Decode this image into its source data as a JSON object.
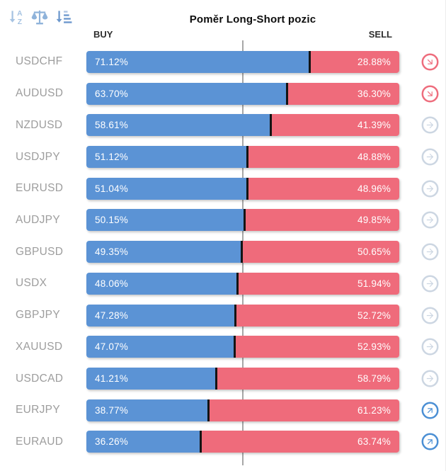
{
  "title": "Poměr Long-Short pozic",
  "columns": {
    "buy": "BUY",
    "sell": "SELL"
  },
  "toolbar": {
    "icons": [
      {
        "name": "sort-alphabetical-icon"
      },
      {
        "name": "balance-scale-icon"
      },
      {
        "name": "sort-amount-icon"
      }
    ]
  },
  "colors": {
    "buy_bar": "#5b93d5",
    "sell_bar": "#ef6b7b",
    "segment_divider": "#141414",
    "pair_label": "#9d9d9d",
    "trend_down": "#ee6d7d",
    "trend_neutral": "#ccd6e2",
    "trend_up": "#4b8fd4",
    "center_line": "#a7a7a7"
  },
  "rows": [
    {
      "pair": "USDCHF",
      "buy": "71.12%",
      "sell": "28.88%",
      "trend": "down"
    },
    {
      "pair": "AUDUSD",
      "buy": "63.70%",
      "sell": "36.30%",
      "trend": "down"
    },
    {
      "pair": "NZDUSD",
      "buy": "58.61%",
      "sell": "41.39%",
      "trend": "neutral"
    },
    {
      "pair": "USDJPY",
      "buy": "51.12%",
      "sell": "48.88%",
      "trend": "neutral"
    },
    {
      "pair": "EURUSD",
      "buy": "51.04%",
      "sell": "48.96%",
      "trend": "neutral"
    },
    {
      "pair": "AUDJPY",
      "buy": "50.15%",
      "sell": "49.85%",
      "trend": "neutral"
    },
    {
      "pair": "GBPUSD",
      "buy": "49.35%",
      "sell": "50.65%",
      "trend": "neutral"
    },
    {
      "pair": "USDX",
      "buy": "48.06%",
      "sell": "51.94%",
      "trend": "neutral"
    },
    {
      "pair": "GBPJPY",
      "buy": "47.28%",
      "sell": "52.72%",
      "trend": "neutral"
    },
    {
      "pair": "XAUUSD",
      "buy": "47.07%",
      "sell": "52.93%",
      "trend": "neutral"
    },
    {
      "pair": "USDCAD",
      "buy": "41.21%",
      "sell": "58.79%",
      "trend": "neutral"
    },
    {
      "pair": "EURJPY",
      "buy": "38.77%",
      "sell": "61.23%",
      "trend": "up"
    },
    {
      "pair": "EURAUD",
      "buy": "36.26%",
      "sell": "63.74%",
      "trend": "up"
    }
  ],
  "chart_data": {
    "type": "bar",
    "subtype": "horizontal-stacked",
    "title": "Poměr Long-Short pozic",
    "categories": [
      "USDCHF",
      "AUDUSD",
      "NZDUSD",
      "USDJPY",
      "EURUSD",
      "AUDJPY",
      "GBPUSD",
      "USDX",
      "GBPJPY",
      "XAUUSD",
      "USDCAD",
      "EURJPY",
      "EURAUD"
    ],
    "series": [
      {
        "name": "BUY",
        "values": [
          71.12,
          63.7,
          58.61,
          51.12,
          51.04,
          50.15,
          49.35,
          48.06,
          47.28,
          47.07,
          41.21,
          38.77,
          36.26
        ]
      },
      {
        "name": "SELL",
        "values": [
          28.88,
          36.3,
          41.39,
          48.88,
          48.96,
          49.85,
          50.65,
          51.94,
          52.72,
          52.93,
          58.79,
          61.23,
          63.74
        ]
      }
    ],
    "xlim": [
      0,
      100
    ],
    "center_line": 50,
    "grid": false,
    "legend_position": "top"
  }
}
